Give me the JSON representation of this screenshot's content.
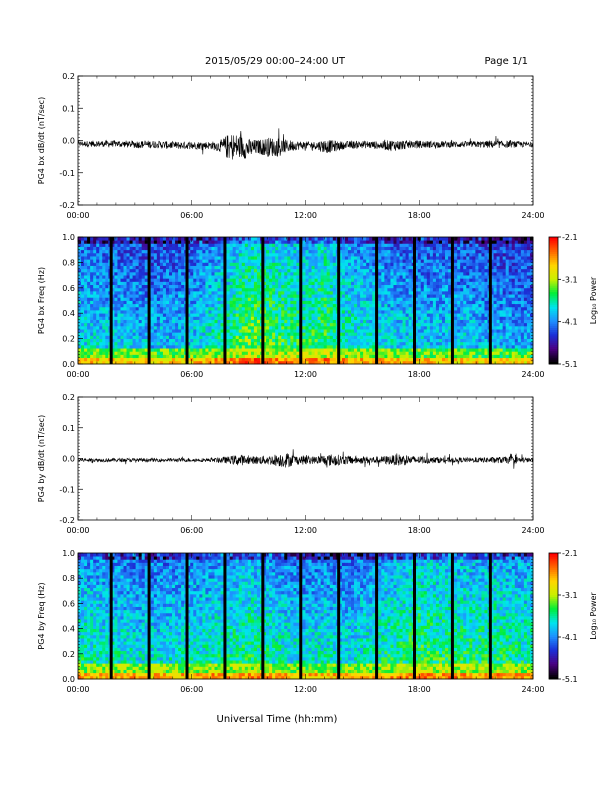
{
  "header": {
    "title": "2015/05/29  00:00–24:00 UT",
    "page": "Page 1/1"
  },
  "xlabel": "Universal Time (hh:mm)",
  "colors": {
    "waveform": "#000000",
    "colormap": [
      "#000000",
      "#4b0082",
      "#1c2fd6",
      "#1e90ff",
      "#00e5ee",
      "#00ee3a",
      "#c8f000",
      "#ffd700",
      "#ff6a00",
      "#ff0000"
    ]
  },
  "chart_data": [
    {
      "type": "line",
      "panel": "bx-waveform",
      "ylabel": "PG4 bx dB/dt (nT/sec)",
      "x_ticks": [
        "00:00",
        "06:00",
        "12:00",
        "18:00",
        "24:00"
      ],
      "y_ticks": [
        "0.2",
        "0.1",
        "0.0",
        "-0.1",
        "-0.2"
      ],
      "xlim": [
        0,
        24
      ],
      "ylim": [
        -0.2,
        0.2
      ],
      "series": [
        {
          "x": [
            0,
            1,
            2,
            3,
            4,
            5,
            6,
            7,
            7.5,
            8,
            8.5,
            9,
            9.5,
            10,
            10.5,
            11,
            11.5,
            12,
            12.5,
            13,
            13.5,
            14,
            15,
            16,
            16.5,
            17,
            17.5,
            18,
            19,
            20,
            21,
            22,
            23,
            24
          ],
          "y": [
            -0.01,
            -0.01,
            -0.01,
            -0.012,
            -0.012,
            -0.015,
            -0.015,
            -0.015,
            -0.018,
            -0.02,
            -0.02,
            -0.025,
            -0.02,
            -0.02,
            -0.02,
            -0.018,
            -0.015,
            -0.015,
            -0.015,
            -0.018,
            -0.018,
            -0.015,
            -0.012,
            -0.015,
            -0.015,
            -0.015,
            -0.012,
            -0.012,
            -0.012,
            -0.012,
            -0.012,
            -0.012,
            -0.012,
            -0.012
          ],
          "amplitude": [
            0.008,
            0.01,
            0.01,
            0.012,
            0.012,
            0.012,
            0.012,
            0.012,
            0.018,
            0.045,
            0.04,
            0.03,
            0.022,
            0.03,
            0.03,
            0.02,
            0.015,
            0.012,
            0.012,
            0.022,
            0.018,
            0.012,
            0.012,
            0.012,
            0.018,
            0.016,
            0.012,
            0.012,
            0.01,
            0.01,
            0.01,
            0.012,
            0.01,
            0.008
          ]
        }
      ]
    },
    {
      "type": "heatmap",
      "panel": "bx-spectrogram",
      "ylabel": "PG4 bx Freq (Hz)",
      "x_ticks": [
        "00:00",
        "06:00",
        "12:00",
        "18:00",
        "24:00"
      ],
      "y_ticks": [
        "1.0",
        "0.8",
        "0.6",
        "0.4",
        "0.2",
        "0.0"
      ],
      "xlim": [
        0,
        24
      ],
      "ylim": [
        0,
        1
      ],
      "colorbar": {
        "label": "Log₁₀ Power",
        "ticks": [
          "-2.1",
          "-3.1",
          "-4.1",
          "-5.1"
        ],
        "range": [
          -5.1,
          -2.1
        ]
      },
      "data_gaps_hours": [
        1.75,
        3.75,
        5.75,
        7.75,
        9.75,
        11.75,
        13.75,
        15.75,
        17.75,
        19.75,
        21.75
      ],
      "activity_hours": [
        0,
        2,
        4,
        6,
        8,
        9,
        10,
        11,
        12,
        13,
        14,
        15,
        16,
        18,
        20,
        22,
        24
      ],
      "activity_level": [
        0.45,
        0.4,
        0.35,
        0.4,
        0.6,
        0.75,
        0.7,
        0.65,
        0.6,
        0.7,
        0.55,
        0.5,
        0.45,
        0.4,
        0.4,
        0.35,
        0.3
      ]
    },
    {
      "type": "line",
      "panel": "by-waveform",
      "ylabel": "PG4 by dB/dt (nT/sec)",
      "x_ticks": [
        "00:00",
        "06:00",
        "12:00",
        "18:00",
        "24:00"
      ],
      "y_ticks": [
        "0.2",
        "0.1",
        "0.0",
        "-0.1",
        "-0.2"
      ],
      "xlim": [
        0,
        24
      ],
      "ylim": [
        -0.2,
        0.2
      ],
      "series": [
        {
          "x": [
            0,
            1,
            2,
            3,
            4,
            5,
            6,
            7,
            8,
            8.5,
            9,
            10,
            10.5,
            11,
            11.5,
            12,
            12.5,
            13,
            13.5,
            14,
            15,
            16,
            16.5,
            17,
            17.5,
            18,
            19,
            20,
            21,
            22,
            23,
            24
          ],
          "y": [
            -0.005,
            -0.005,
            -0.005,
            -0.005,
            -0.005,
            -0.005,
            -0.005,
            -0.005,
            -0.005,
            -0.005,
            -0.005,
            -0.005,
            -0.005,
            -0.005,
            -0.005,
            -0.005,
            -0.005,
            -0.005,
            -0.005,
            -0.005,
            -0.005,
            -0.005,
            -0.005,
            -0.005,
            -0.005,
            -0.005,
            -0.005,
            -0.005,
            -0.005,
            -0.005,
            -0.005,
            -0.005
          ],
          "amplitude": [
            0.006,
            0.006,
            0.006,
            0.006,
            0.006,
            0.006,
            0.006,
            0.006,
            0.012,
            0.02,
            0.012,
            0.015,
            0.02,
            0.025,
            0.015,
            0.015,
            0.012,
            0.018,
            0.02,
            0.015,
            0.012,
            0.012,
            0.015,
            0.02,
            0.015,
            0.012,
            0.01,
            0.008,
            0.008,
            0.01,
            0.012,
            0.006
          ]
        }
      ]
    },
    {
      "type": "heatmap",
      "panel": "by-spectrogram",
      "ylabel": "PG4 by Freq (Hz)",
      "x_ticks": [
        "00:00",
        "06:00",
        "12:00",
        "18:00",
        "24:00"
      ],
      "y_ticks": [
        "1.0",
        "0.8",
        "0.6",
        "0.4",
        "0.2",
        "0.0"
      ],
      "xlim": [
        0,
        24
      ],
      "ylim": [
        0,
        1
      ],
      "colorbar": {
        "label": "Log₁₀ Power",
        "ticks": [
          "-2.1",
          "-3.1",
          "-4.1",
          "-5.1"
        ],
        "range": [
          -5.1,
          -2.1
        ]
      },
      "data_gaps_hours": [
        1.75,
        3.75,
        5.75,
        7.75,
        9.75,
        11.75,
        13.75,
        15.75,
        17.75,
        19.75,
        21.75
      ],
      "activity_hours": [
        0,
        2,
        4,
        6,
        8,
        9,
        10,
        11,
        12,
        13,
        14,
        15,
        16,
        18,
        20,
        22,
        24
      ],
      "activity_level": [
        0.55,
        0.5,
        0.45,
        0.5,
        0.55,
        0.6,
        0.55,
        0.5,
        0.45,
        0.5,
        0.45,
        0.5,
        0.55,
        0.65,
        0.6,
        0.6,
        0.55
      ]
    }
  ]
}
